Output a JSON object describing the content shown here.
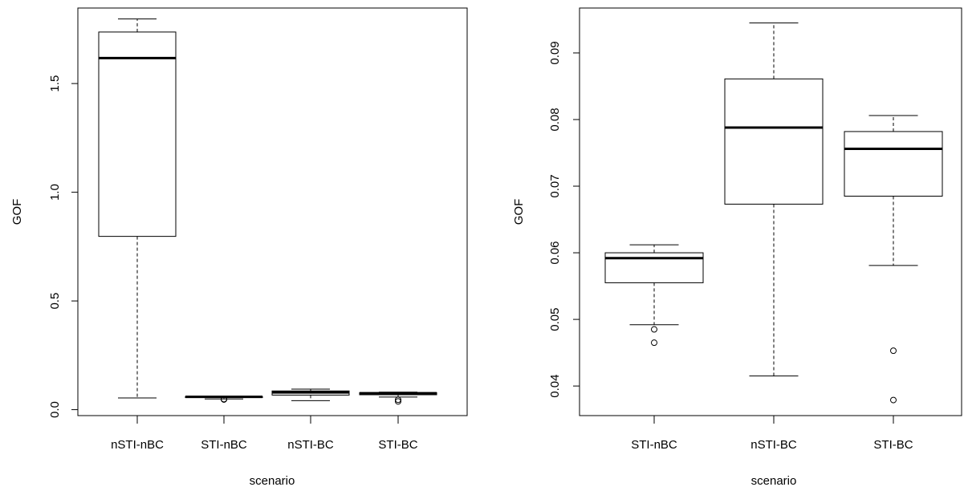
{
  "chart_data": [
    {
      "type": "boxplot",
      "title": "",
      "xlabel": "scenario",
      "ylabel": "GOF",
      "ylim": [
        0,
        1.8
      ],
      "yticks": [
        "0.0",
        "0.5",
        "1.0",
        "1.5"
      ],
      "y_tick_values": [
        0,
        0.5,
        1.0,
        1.5
      ],
      "categories": [
        "nSTI-nBC",
        "STI-nBC",
        "nSTI-BC",
        "STI-BC"
      ],
      "boxes": [
        {
          "category": "nSTI-nBC",
          "min": 0.054,
          "q1": 0.797,
          "median": 1.617,
          "q3": 1.737,
          "max": 1.797,
          "outliers": []
        },
        {
          "category": "STI-nBC",
          "min": 0.049,
          "q1": 0.0555,
          "median": 0.059,
          "q3": 0.06,
          "max": 0.061,
          "outliers": [
            0.0485,
            0.0465
          ]
        },
        {
          "category": "nSTI-BC",
          "min": 0.0415,
          "q1": 0.067,
          "median": 0.079,
          "q3": 0.086,
          "max": 0.0945,
          "outliers": []
        },
        {
          "category": "STI-BC",
          "min": 0.058,
          "q1": 0.0685,
          "median": 0.0755,
          "q3": 0.078,
          "max": 0.0805,
          "outliers": [
            0.0453,
            0.0378
          ]
        }
      ]
    },
    {
      "type": "boxplot",
      "title": "",
      "xlabel": "scenario",
      "ylabel": "GOF",
      "ylim": [
        0.036,
        0.096
      ],
      "yticks": [
        "0.04",
        "0.05",
        "0.06",
        "0.07",
        "0.08",
        "0.09"
      ],
      "y_tick_values": [
        0.04,
        0.05,
        0.06,
        0.07,
        0.08,
        0.09
      ],
      "categories": [
        "STI-nBC",
        "nSTI-BC",
        "STI-BC"
      ],
      "boxes": [
        {
          "category": "STI-nBC",
          "min": 0.0492,
          "q1": 0.0555,
          "median": 0.0592,
          "q3": 0.06,
          "max": 0.0612,
          "outliers": [
            0.0485,
            0.0465
          ]
        },
        {
          "category": "nSTI-BC",
          "min": 0.0415,
          "q1": 0.0673,
          "median": 0.0788,
          "q3": 0.0861,
          "max": 0.0945,
          "outliers": []
        },
        {
          "category": "STI-BC",
          "min": 0.0581,
          "q1": 0.0685,
          "median": 0.0756,
          "q3": 0.0782,
          "max": 0.0806,
          "outliers": [
            0.0453,
            0.0379
          ]
        }
      ]
    }
  ]
}
